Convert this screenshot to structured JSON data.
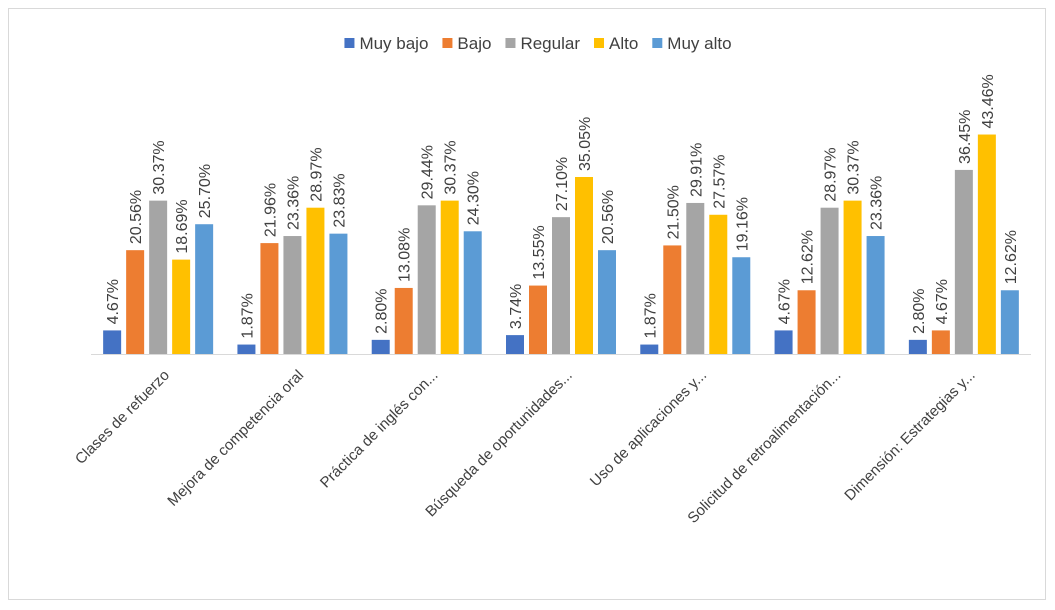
{
  "chart_data": {
    "type": "bar",
    "title": "",
    "xlabel": "",
    "ylabel": "",
    "ylim": [
      0,
      45
    ],
    "grid": false,
    "legend_position": "top",
    "categories": [
      "Clases de refuerzo",
      "Mejora de competencia oral",
      "Práctica de inglés con...",
      "Búsqueda de oportunidades...",
      "Uso de aplicaciones y...",
      "Solicitud de retroalimentación...",
      "Dimensión: Estrategias y..."
    ],
    "series": [
      {
        "name": "Muy bajo",
        "color": "#4472c4",
        "values": [
          4.67,
          1.87,
          2.8,
          3.74,
          1.87,
          4.67,
          2.8
        ],
        "labels": [
          "4.67%",
          "1.87%",
          "2.80%",
          "3.74%",
          "1.87%",
          "4.67%",
          "2.80%"
        ]
      },
      {
        "name": "Bajo",
        "color": "#ed7d31",
        "values": [
          20.56,
          21.96,
          13.08,
          13.55,
          21.5,
          12.62,
          4.67
        ],
        "labels": [
          "20.56%",
          "21.96%",
          "13.08%",
          "13.55%",
          "21.50%",
          "12.62%",
          "4.67%"
        ]
      },
      {
        "name": "Regular",
        "color": "#a5a5a5",
        "values": [
          30.37,
          23.36,
          29.44,
          27.1,
          29.91,
          28.97,
          36.45
        ],
        "labels": [
          "30.37%",
          "23.36%",
          "29.44%",
          "27.10%",
          "29.91%",
          "28.97%",
          "36.45%"
        ]
      },
      {
        "name": "Alto",
        "color": "#ffc000",
        "values": [
          18.69,
          28.97,
          30.37,
          35.05,
          27.57,
          30.37,
          43.46
        ],
        "labels": [
          "18.69%",
          "28.97%",
          "30.37%",
          "35.05%",
          "27.57%",
          "30.37%",
          "43.46%"
        ]
      },
      {
        "name": "Muy alto",
        "color": "#5b9bd5",
        "values": [
          25.7,
          23.83,
          24.3,
          20.56,
          19.16,
          23.36,
          12.62
        ],
        "labels": [
          "25.70%",
          "23.83%",
          "24.30%",
          "20.56%",
          "19.16%",
          "23.36%",
          "12.62%"
        ]
      }
    ]
  }
}
